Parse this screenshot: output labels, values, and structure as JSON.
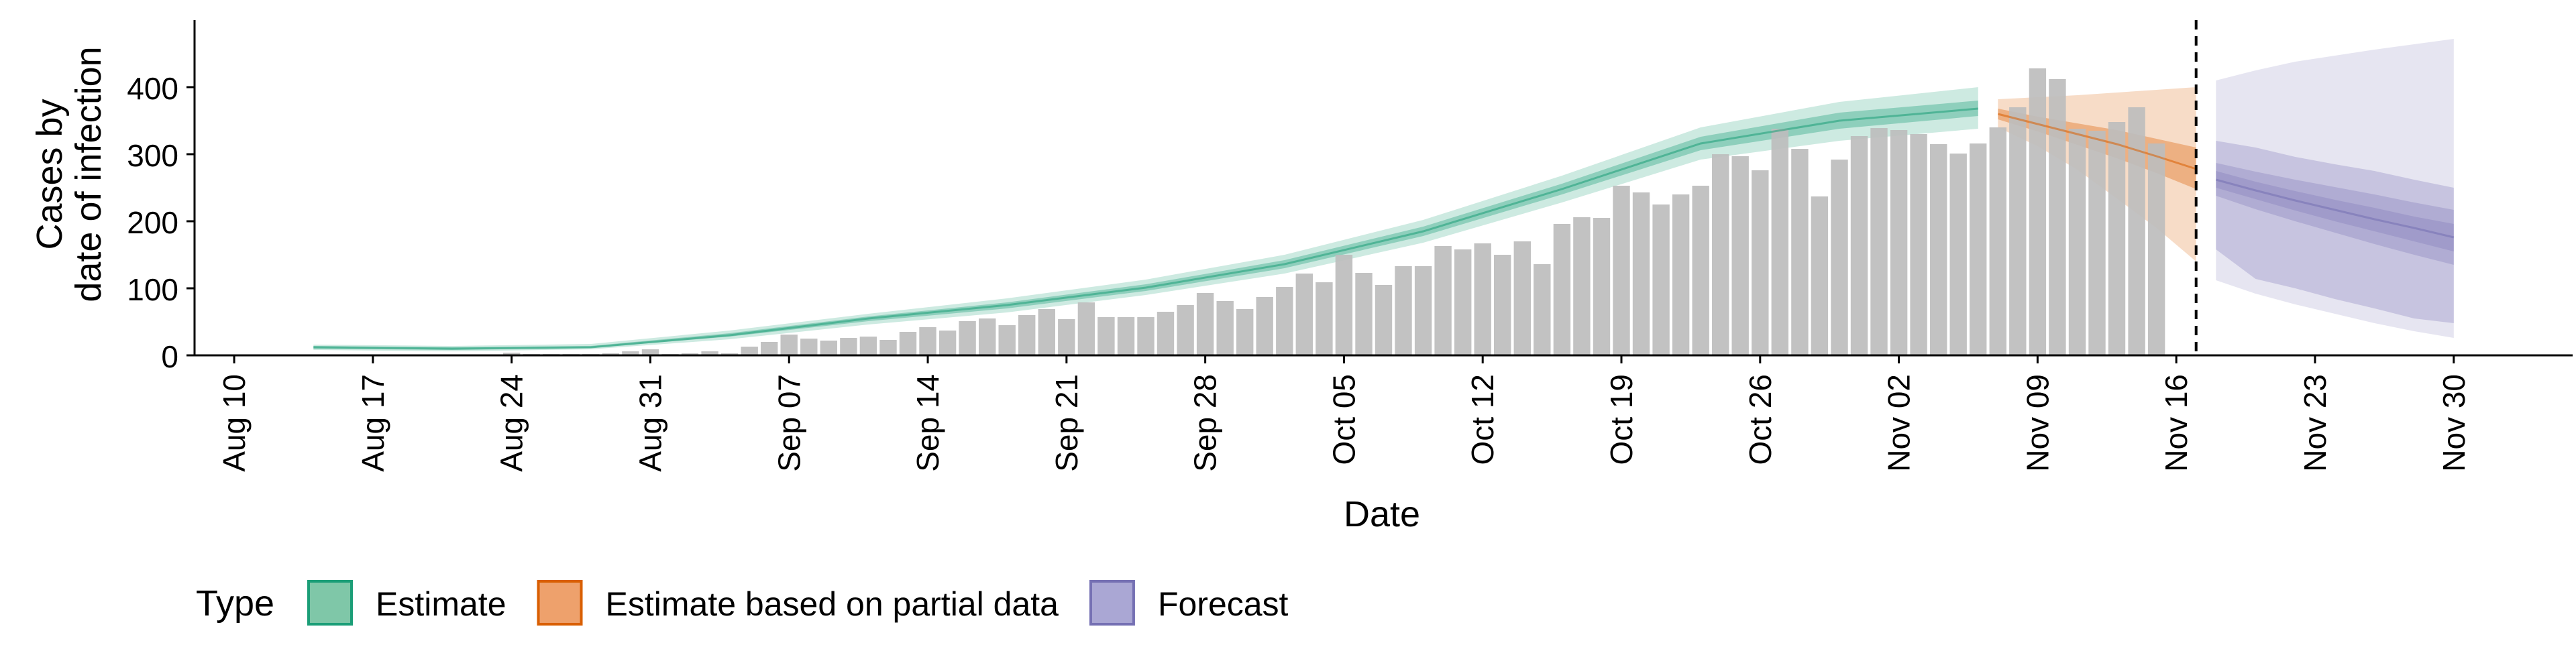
{
  "chart_data": {
    "type": "bar",
    "title": "",
    "xlabel": "Date",
    "ylabel_lines": [
      "Cases by",
      "date of infection"
    ],
    "ylim": [
      0,
      500
    ],
    "yticks": [
      0,
      100,
      200,
      300,
      400
    ],
    "xlim": [
      "2020-08-08",
      "2020-12-06"
    ],
    "xticks": [
      {
        "date": "2020-08-10",
        "label": "Aug 10"
      },
      {
        "date": "2020-08-17",
        "label": "Aug 17"
      },
      {
        "date": "2020-08-24",
        "label": "Aug 24"
      },
      {
        "date": "2020-08-31",
        "label": "Aug 31"
      },
      {
        "date": "2020-09-07",
        "label": "Sep 07"
      },
      {
        "date": "2020-09-14",
        "label": "Sep 14"
      },
      {
        "date": "2020-09-21",
        "label": "Sep 21"
      },
      {
        "date": "2020-09-28",
        "label": "Sep 28"
      },
      {
        "date": "2020-10-05",
        "label": "Oct 05"
      },
      {
        "date": "2020-10-12",
        "label": "Oct 12"
      },
      {
        "date": "2020-10-19",
        "label": "Oct 19"
      },
      {
        "date": "2020-10-26",
        "label": "Oct 26"
      },
      {
        "date": "2020-11-02",
        "label": "Nov 02"
      },
      {
        "date": "2020-11-09",
        "label": "Nov 09"
      },
      {
        "date": "2020-11-16",
        "label": "Nov 16"
      },
      {
        "date": "2020-11-23",
        "label": "Nov 23"
      },
      {
        "date": "2020-11-30",
        "label": "Nov 30"
      }
    ],
    "reported_cases": {
      "start_date": "2020-08-24",
      "values": [
        4,
        2,
        2,
        2,
        2,
        3,
        6,
        9,
        2,
        3,
        6,
        3,
        13,
        20,
        31,
        25,
        22,
        26,
        28,
        23,
        35,
        42,
        37,
        51,
        55,
        45,
        60,
        69,
        54,
        79,
        57,
        57,
        57,
        65,
        75,
        93,
        81,
        69,
        87,
        102,
        122,
        109,
        150,
        123,
        105,
        133,
        133,
        163,
        158,
        167,
        150,
        170,
        136,
        196,
        206,
        205,
        253,
        243,
        225,
        240,
        253,
        300,
        297,
        276,
        338,
        308,
        237,
        292,
        327,
        339,
        336,
        330,
        315,
        301,
        316,
        340,
        370,
        428,
        412,
        338,
        335,
        348,
        370,
        316
      ]
    },
    "vline_date": "2020-11-17",
    "estimate": {
      "dates": [
        "2020-08-14",
        "2020-08-21",
        "2020-08-28",
        "2020-09-04",
        "2020-09-11",
        "2020-09-18",
        "2020-09-25",
        "2020-10-02",
        "2020-10-09",
        "2020-10-16",
        "2020-10-23",
        "2020-10-30",
        "2020-11-06"
      ],
      "median": [
        12,
        10,
        12,
        30,
        55,
        75,
        101,
        136,
        185,
        248,
        316,
        350,
        368
      ],
      "lower50": [
        10,
        8,
        11,
        28,
        51,
        70,
        96,
        130,
        178,
        240,
        306,
        338,
        357
      ],
      "upper50": [
        14,
        12,
        14,
        33,
        58,
        79,
        106,
        142,
        192,
        256,
        326,
        362,
        380
      ],
      "lower90": [
        8,
        6,
        9,
        24,
        46,
        64,
        90,
        122,
        168,
        228,
        292,
        320,
        338
      ],
      "upper90": [
        16,
        14,
        17,
        37,
        62,
        85,
        113,
        150,
        202,
        268,
        340,
        378,
        400
      ]
    },
    "estimate_partial": {
      "dates": [
        "2020-11-07",
        "2020-11-09",
        "2020-11-11",
        "2020-11-13",
        "2020-11-15",
        "2020-11-17"
      ],
      "median": [
        360,
        345,
        330,
        315,
        297,
        278
      ],
      "lower50": [
        352,
        334,
        314,
        294,
        272,
        248
      ],
      "upper50": [
        368,
        356,
        346,
        336,
        323,
        310
      ],
      "lower90": [
        340,
        312,
        277,
        234,
        190,
        140
      ],
      "upper90": [
        382,
        385,
        388,
        392,
        396,
        400
      ]
    },
    "forecast": {
      "dates": [
        "2020-11-18",
        "2020-11-20",
        "2020-11-22",
        "2020-11-24",
        "2020-11-26",
        "2020-11-28",
        "2020-11-30"
      ],
      "median": [
        262,
        246,
        231,
        217,
        203,
        190,
        176
      ],
      "lower50": [
        238,
        218,
        200,
        183,
        166,
        150,
        135
      ],
      "upper50": [
        287,
        274,
        262,
        251,
        240,
        228,
        217
      ],
      "lower20": [
        250,
        233,
        216,
        200,
        185,
        170,
        155
      ],
      "upper20": [
        275,
        259,
        245,
        232,
        220,
        207,
        196
      ],
      "lower90": [
        158,
        114,
        100,
        84,
        70,
        55,
        48
      ],
      "upper90": [
        320,
        310,
        296,
        285,
        275,
        262,
        250
      ],
      "lower_outer": [
        112,
        92,
        76,
        62,
        48,
        36,
        26
      ],
      "upper_outer": [
        410,
        425,
        438,
        447,
        456,
        464,
        472
      ]
    },
    "legend": {
      "title": "Type",
      "placement": "bottom-left",
      "entries": [
        {
          "label": "Estimate",
          "fill": "#7fc7a8",
          "stroke": "#1b9e77"
        },
        {
          "label": "Estimate based on partial data",
          "fill": "#eea16c",
          "stroke": "#d95f02"
        },
        {
          "label": "Forecast",
          "fill": "#aaa7d4",
          "stroke": "#7570b3"
        }
      ]
    },
    "colors": {
      "bars": "#bdbdbd",
      "estimate": "#1b9e77",
      "estimate_partial": "#d95f02",
      "forecast": "#7570b3",
      "vline": "#000000"
    },
    "grid": false
  }
}
